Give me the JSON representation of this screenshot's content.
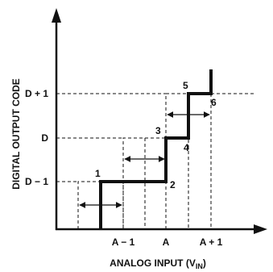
{
  "axes": {
    "x_label": "ANALOG INPUT (V",
    "x_label_sub": "IN",
    "x_label_close": ")",
    "y_label": "DIGITAL OUTPUT CODE",
    "x_ticks": [
      "A − 1",
      "A",
      "A + 1"
    ],
    "y_ticks": [
      "D − 1",
      "D",
      "D + 1"
    ]
  },
  "points": [
    "1",
    "2",
    "3",
    "4",
    "5",
    "6"
  ],
  "colors": {
    "ink": "#111111",
    "background": "#ffffff"
  }
}
